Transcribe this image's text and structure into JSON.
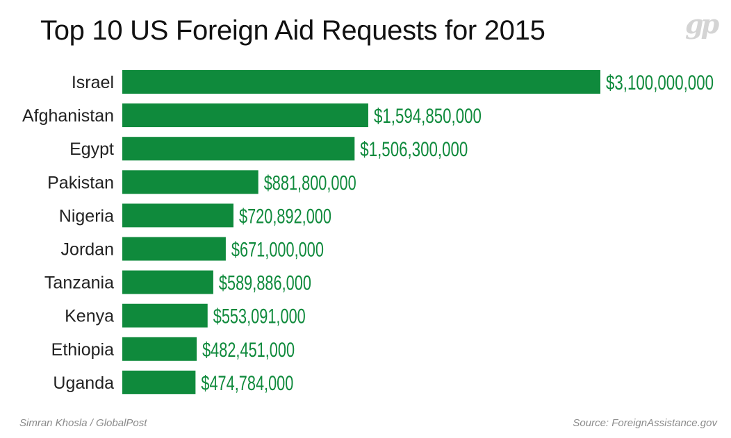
{
  "header": {
    "title": "Top 10 US Foreign Aid Requests for 2015",
    "logo_text": "gp"
  },
  "footer": {
    "credit": "Simran Khosla / GlobalPost",
    "source": "Source: ForeignAssistance.gov"
  },
  "colors": {
    "bar": "#0f8a3c",
    "value_text": "#0f8a3c",
    "label_text": "#222222"
  },
  "chart_data": {
    "type": "bar",
    "orientation": "horizontal",
    "title": "Top 10 US Foreign Aid Requests for 2015",
    "xlabel": "",
    "ylabel": "",
    "grid": false,
    "xlim": [
      0,
      3100000000
    ],
    "categories": [
      "Israel",
      "Afghanistan",
      "Egypt",
      "Pakistan",
      "Nigeria",
      "Jordan",
      "Tanzania",
      "Kenya",
      "Ethiopia",
      "Uganda"
    ],
    "values": [
      3100000000,
      1594850000,
      1506300000,
      881800000,
      720892000,
      671000000,
      589886000,
      553091000,
      482451000,
      474784000
    ],
    "value_labels": [
      "$3,100,000,000",
      "$1,594,850,000",
      "$1,506,300,000",
      "$881,800,000",
      "$720,892,000",
      "$671,000,000",
      "$589,886,000",
      "$553,091,000",
      "$482,451,000",
      "$474,784,000"
    ]
  }
}
